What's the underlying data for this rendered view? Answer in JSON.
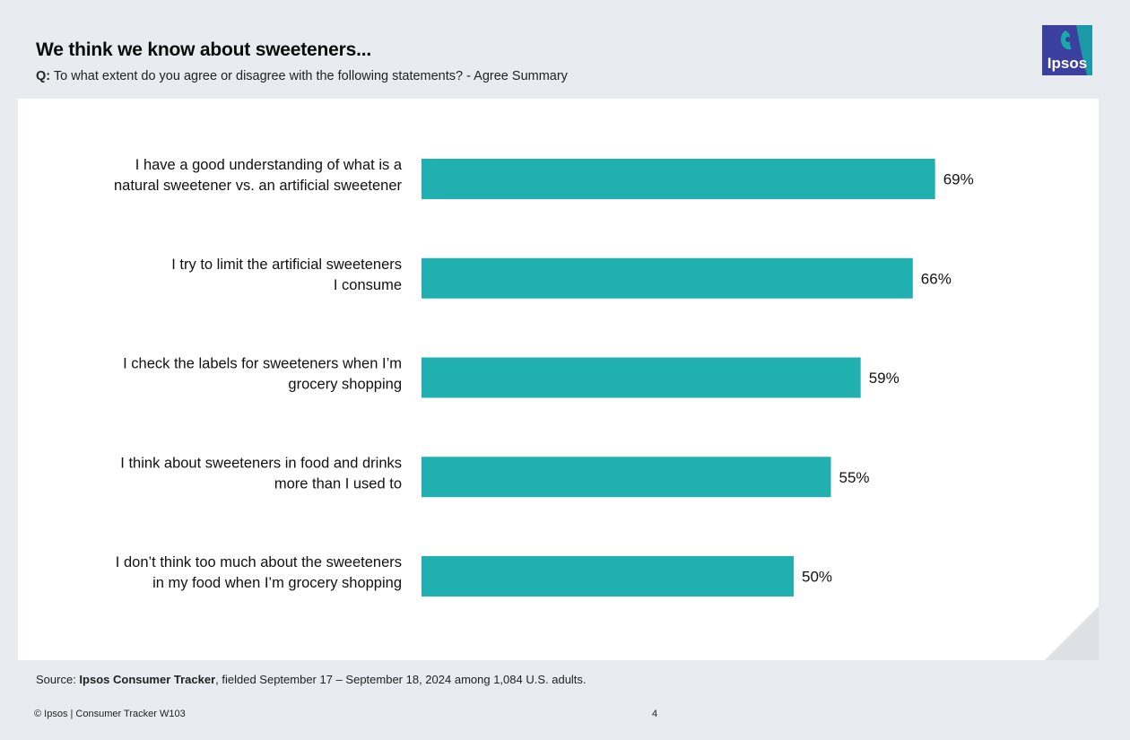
{
  "header": {
    "title": "We think we know about sweeteners...",
    "question_prefix": "Q:",
    "question_text": " To what extent do you agree or disagree with the following statements? - Agree Summary"
  },
  "logo": {
    "text": "Ipsos",
    "icon": "ipsos-logo-icon"
  },
  "colors": {
    "bar": "#20b0b0",
    "background": "#e8ebef",
    "panel": "#ffffff",
    "logo": "#3b3f9d",
    "logo_accent": "#18a9a9"
  },
  "chart_data": {
    "type": "bar",
    "orientation": "horizontal",
    "categories": [
      [
        "I have a good understanding of what is a",
        "natural sweetener vs. an artificial sweetener"
      ],
      [
        "I try to limit the artificial sweeteners",
        "I consume"
      ],
      [
        "I check the labels for sweeteners when I’m",
        "grocery shopping"
      ],
      [
        "I think about sweeteners in food and drinks",
        "more than I used to"
      ],
      [
        "I don’t think too much about the sweeteners",
        "in my food when I’m grocery shopping"
      ]
    ],
    "values": [
      69,
      66,
      59,
      55,
      50
    ],
    "value_labels": [
      "69%",
      "66%",
      "59%",
      "55%",
      "50%"
    ],
    "xlim": [
      0,
      100
    ],
    "grid": false,
    "legend": "none"
  },
  "source": {
    "prefix": "Source: ",
    "name": "Ipsos Consumer Tracker",
    "suffix": ", fielded September 17 – September 18, 2024 among 1,084 U.S. adults."
  },
  "footer": {
    "text": "© Ipsos | Consumer Tracker W103",
    "page": "4"
  }
}
